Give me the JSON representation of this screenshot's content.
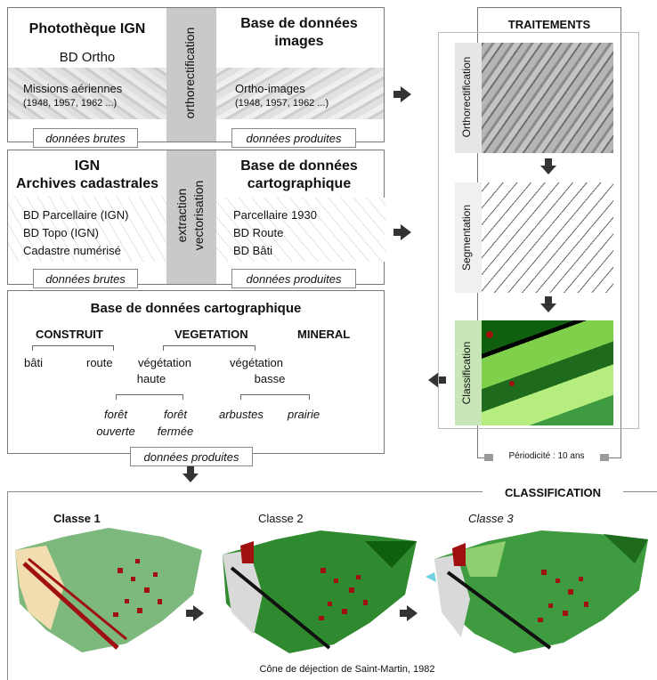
{
  "box1": {
    "left_title": "Photothèque IGN",
    "left_sub": "BD Ortho",
    "left_items": [
      "Missions aériennes",
      "(1948, 1957, 1962 ...)"
    ],
    "middle": "orthorectification",
    "right_title_1": "Base de données",
    "right_title_2": "images",
    "right_items": [
      "Ortho-images",
      "(1948, 1957, 1962 ...)"
    ],
    "tag_left": "données brutes",
    "tag_right": "données produites"
  },
  "box2": {
    "left_title_1": "IGN",
    "left_title_2": "Archives cadastrales",
    "left_items": [
      "BD Parcellaire (IGN)",
      "BD Topo (IGN)",
      "Cadastre numérisé"
    ],
    "middle_1": "extraction",
    "middle_2": "vectorisation",
    "right_title_1": "Base de données",
    "right_title_2": "cartographique",
    "right_items": [
      "Parcellaire 1930",
      "BD Route",
      "BD Bâti"
    ],
    "tag_left": "données brutes",
    "tag_right": "données produites"
  },
  "box3": {
    "title": "Base de données cartographique",
    "cat_construit": "CONSTRUIT",
    "cat_vegetation": "VEGETATION",
    "cat_mineral": "MINERAL",
    "bati": "bâti",
    "route": "route",
    "veg_haute_1": "végétation",
    "veg_haute_2": "haute",
    "veg_basse_1": "végétation",
    "veg_basse_2": "basse",
    "foret_ouverte_1": "forêt",
    "foret_ouverte_2": "ouverte",
    "foret_fermee_1": "forêt",
    "foret_fermee_2": "fermée",
    "arbustes": "arbustes",
    "prairie": "prairie",
    "tag": "données produites"
  },
  "traitements": {
    "title": "TRAITEMENTS",
    "steps": [
      "Orthorectification",
      "Segmentation",
      "Classification"
    ],
    "periodicite": "Périodicité : 10 ans"
  },
  "classification": {
    "title": "CLASSIFICATION",
    "classes": [
      "Classe 1",
      "Classe 2",
      "Classe 3"
    ],
    "caption": "Cône de déjection de Saint-Martin, 1982"
  },
  "colors": {
    "dark_green": "#1e6b1e",
    "mid_green": "#3f9b3f",
    "light_green": "#8fcf6f",
    "buildings": "#a01010",
    "mineral": "#d9d9d9",
    "sand": "#f2ddb0"
  }
}
